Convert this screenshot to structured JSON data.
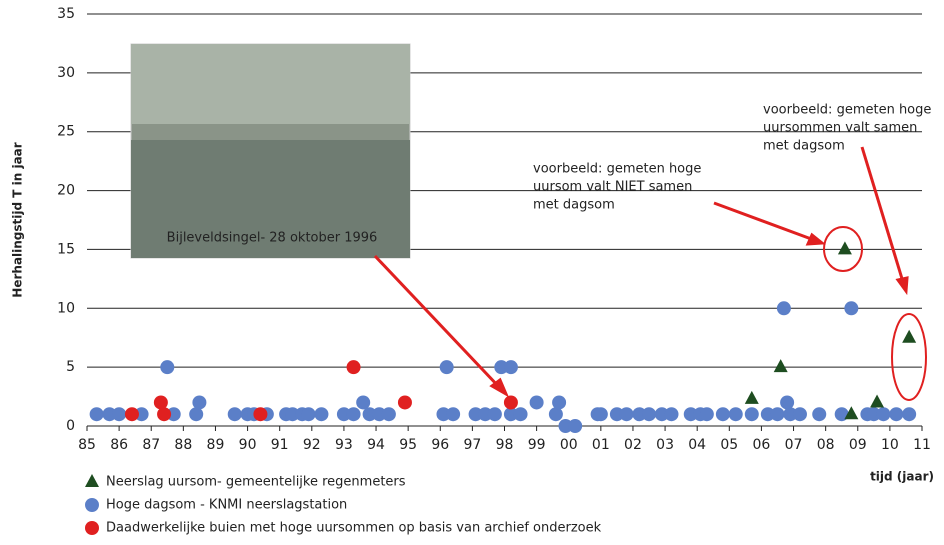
{
  "chart_data": {
    "type": "scatter",
    "y_label": "Herhalingstijd T in jaar",
    "x_label": "tijd (jaar)",
    "xlim": [
      85,
      111
    ],
    "ylim": [
      0,
      35
    ],
    "grid": true,
    "yticks": [
      0,
      5,
      10,
      15,
      20,
      25,
      30,
      35
    ],
    "xticks": [
      85,
      86,
      87,
      88,
      89,
      90,
      91,
      92,
      93,
      94,
      95,
      96,
      97,
      98,
      99,
      {
        "value": 100,
        "label": "00"
      },
      {
        "value": 101,
        "label": "01"
      },
      {
        "value": 102,
        "label": "02"
      },
      {
        "value": 103,
        "label": "03"
      },
      {
        "value": 104,
        "label": "04"
      },
      {
        "value": 105,
        "label": "05"
      },
      {
        "value": 106,
        "label": "06"
      },
      {
        "value": 107,
        "label": "07"
      },
      {
        "value": 108,
        "label": "08"
      },
      {
        "value": 109,
        "label": "09"
      },
      {
        "value": 110,
        "label": "10"
      },
      {
        "value": 111,
        "label": "11"
      }
    ],
    "series": [
      {
        "name": "Hoge dagsom - KNMI neerslagstation",
        "color": "#5b7fc8",
        "marker": "circle",
        "x": [
          85.3,
          85.7,
          86.0,
          86.7,
          87.5,
          87.7,
          88.4,
          88.5,
          89.6,
          90.0,
          90.2,
          90.6,
          91.2,
          91.4,
          91.7,
          91.9,
          92.3,
          93.0,
          93.3,
          93.6,
          93.8,
          94.1,
          94.4,
          96.1,
          96.2,
          96.4,
          97.1,
          97.4,
          97.7,
          97.9,
          98.2,
          98.2,
          98.5,
          99.0,
          99.6,
          99.7,
          99.9,
          100.2,
          100.9,
          101.0,
          101.5,
          101.8,
          102.2,
          102.5,
          102.9,
          103.2,
          103.8,
          104.1,
          104.3,
          104.8,
          105.2,
          105.7,
          106.2,
          106.5,
          106.7,
          106.8,
          106.9,
          107.2,
          107.8,
          108.5,
          108.8,
          109.3,
          109.5,
          109.8,
          110.2,
          110.6
        ],
        "values": [
          1,
          1,
          1,
          1,
          5,
          1,
          1,
          2,
          1,
          1,
          1,
          1,
          1,
          1,
          1,
          1,
          1,
          1,
          1,
          2,
          1,
          1,
          1,
          1,
          5,
          1,
          1,
          1,
          1,
          5,
          5,
          1,
          1,
          2,
          1,
          2,
          0,
          0,
          1,
          1,
          1,
          1,
          1,
          1,
          1,
          1,
          1,
          1,
          1,
          1,
          1,
          1,
          1,
          1,
          10,
          2,
          1,
          1,
          1,
          1,
          10,
          1,
          1,
          1,
          1,
          1
        ]
      },
      {
        "name": "Daadwerkelijke buien met hoge uursommen op basis van archief onderzoek",
        "color": "#e02020",
        "marker": "circle",
        "x": [
          86.4,
          87.3,
          87.4,
          90.4,
          93.3,
          94.9,
          98.2
        ],
        "values": [
          1,
          2,
          1,
          1,
          5,
          2,
          2
        ]
      },
      {
        "name": "Neerslag uursom- gemeentelijke regenmeters",
        "color": "#1e4d20",
        "marker": "triangle",
        "x": [
          105.7,
          106.6,
          108.6,
          108.8,
          109.6,
          110.6
        ],
        "values": [
          2.3,
          5,
          15,
          1,
          2,
          7.5
        ]
      }
    ],
    "legend_order": [
      2,
      0,
      1
    ],
    "annotations": [
      [
        "voorbeeld: gemeten hoge",
        "uursom valt NIET samen",
        "met dagsom"
      ],
      [
        "voorbeeld: gemeten hoge",
        "uursommen valt samen",
        "met dagsom"
      ]
    ],
    "photo_caption": "Bijleveldsingel- 28 oktober 1996"
  }
}
